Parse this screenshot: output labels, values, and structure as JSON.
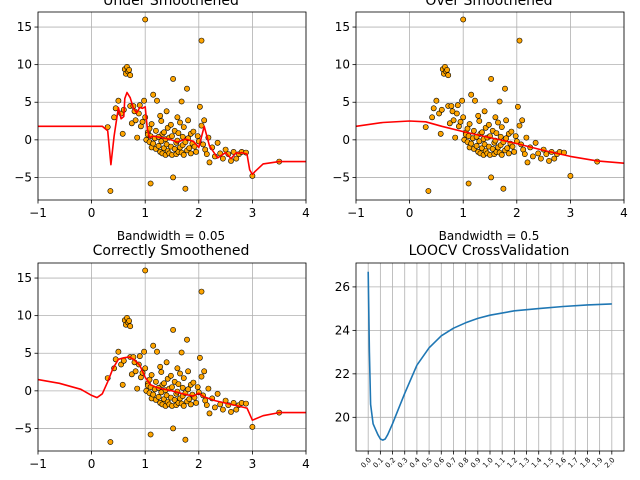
{
  "figure": {
    "background": "#ffffff"
  },
  "chart_data": [
    {
      "type": "scatter",
      "title": "Under Smoothened",
      "xlabel": "Bandwidth = 0.05",
      "ylabel": "",
      "xlim": [
        -1,
        4
      ],
      "ylim": [
        -8,
        17
      ],
      "xticks": [
        -1,
        0,
        1,
        2,
        3,
        4
      ],
      "yticks": [
        -5,
        0,
        5,
        10,
        15
      ],
      "grid": true,
      "colors": {
        "points": "#ffa500",
        "point_edge": "#000000",
        "curve": "#ff0000"
      },
      "points_ref": "shared_points",
      "curve": {
        "x": [
          -1,
          0.2,
          0.3,
          0.33,
          0.36,
          0.42,
          0.5,
          0.55,
          0.6,
          0.62,
          0.66,
          0.72,
          0.78,
          0.84,
          0.9,
          0.95,
          1.0,
          1.04,
          1.08,
          1.15,
          1.3,
          1.45,
          1.6,
          1.75,
          1.9,
          2.0,
          2.1,
          2.2,
          2.35,
          2.5,
          2.6,
          2.7,
          2.75,
          2.8,
          2.9,
          2.95,
          3.0,
          3.05,
          3.2,
          3.5,
          4.0
        ],
        "y": [
          1.8,
          1.8,
          1.2,
          -1.0,
          -3.3,
          0.5,
          4.3,
          2.8,
          3.1,
          5.5,
          6.3,
          5.6,
          4.2,
          3.6,
          4.3,
          4.2,
          4.4,
          1.5,
          0.3,
          0.5,
          0.3,
          0.1,
          -0.3,
          0.1,
          -0.2,
          -1.0,
          1.8,
          -0.8,
          -2.4,
          -1.7,
          -2.5,
          -1.7,
          -1.8,
          -1.7,
          -1.9,
          -4.0,
          -4.6,
          -4.2,
          -3.2,
          -2.9,
          -2.9
        ]
      }
    },
    {
      "type": "scatter",
      "title": "Over Smoothened",
      "xlabel": "Bandwidth = 0.5",
      "ylabel": "",
      "xlim": [
        -1,
        4
      ],
      "ylim": [
        -8,
        17
      ],
      "xticks": [
        -1,
        0,
        1,
        2,
        3,
        4
      ],
      "yticks": [
        -5,
        0,
        5,
        10,
        15
      ],
      "grid": true,
      "colors": {
        "points": "#ffa500",
        "point_edge": "#000000",
        "curve": "#ff0000"
      },
      "points_ref": "shared_points",
      "curve": {
        "x": [
          -1,
          -0.5,
          0,
          0.3,
          0.6,
          1.0,
          1.5,
          2.0,
          2.5,
          3.0,
          3.5,
          4.0
        ],
        "y": [
          1.8,
          2.3,
          2.5,
          2.4,
          1.8,
          1.1,
          0.3,
          -0.5,
          -1.4,
          -2.2,
          -2.8,
          -3.1
        ]
      }
    },
    {
      "type": "scatter",
      "title": "Correctly Smoothened",
      "xlabel": "",
      "ylabel": "",
      "xlim": [
        -1,
        4
      ],
      "ylim": [
        -8,
        17
      ],
      "xticks": [
        -1,
        0,
        1,
        2,
        3,
        4
      ],
      "yticks": [
        -5,
        0,
        5,
        10,
        15
      ],
      "grid": true,
      "colors": {
        "points": "#ffa500",
        "point_edge": "#000000",
        "curve": "#ff0000"
      },
      "points_ref": "shared_points",
      "curve": {
        "x": [
          -1,
          -0.6,
          -0.2,
          0.0,
          0.1,
          0.2,
          0.3,
          0.4,
          0.5,
          0.6,
          0.7,
          0.8,
          0.9,
          1.0,
          1.1,
          1.2,
          1.3,
          1.5,
          1.7,
          1.9,
          2.0,
          2.1,
          2.3,
          2.6,
          2.9,
          3.0,
          3.2,
          3.5,
          4.0
        ],
        "y": [
          1.5,
          1.0,
          0.2,
          -0.6,
          -0.9,
          -0.4,
          1.2,
          3.0,
          4.2,
          4.4,
          4.5,
          4.1,
          3.4,
          1.8,
          0.8,
          0.5,
          0.3,
          0.0,
          -0.4,
          -0.7,
          -0.3,
          -0.8,
          -1.3,
          -1.8,
          -2.3,
          -3.9,
          -3.3,
          -2.9,
          -2.9
        ]
      }
    },
    {
      "type": "line",
      "title": "LOOCV CrossValidation",
      "xlabel": "",
      "ylabel": "",
      "xlim": [
        -0.1,
        2.1
      ],
      "ylim": [
        18.45,
        27.1
      ],
      "xticks": [
        0.0,
        0.1,
        0.2,
        0.3,
        0.4,
        0.5,
        0.6,
        0.7,
        0.8,
        0.9,
        1.0,
        1.1,
        1.2,
        1.3,
        1.4,
        1.5,
        1.6,
        1.7,
        1.8,
        1.9,
        2.0
      ],
      "xticklabels": [
        "0.0",
        "0.1",
        "0.2",
        "0.3",
        "0.4",
        "0.5",
        "0.6",
        "0.7",
        "0.8",
        "0.9",
        "1.0",
        "1.1",
        "1.2",
        "1.3",
        "1.4",
        "1.5",
        "1.6",
        "1.7",
        "1.8",
        "1.9",
        "2.0"
      ],
      "yticks": [
        20,
        22,
        24,
        26
      ],
      "grid": true,
      "colors": {
        "line": "#1f77b4"
      },
      "series": [
        {
          "x": [
            0.0,
            0.01,
            0.02,
            0.04,
            0.06,
            0.08,
            0.1,
            0.12,
            0.14,
            0.16,
            0.2,
            0.25,
            0.3,
            0.4,
            0.5,
            0.6,
            0.7,
            0.8,
            0.9,
            1.0,
            1.2,
            1.4,
            1.6,
            1.8,
            2.0
          ],
          "values": [
            26.7,
            23.0,
            20.6,
            19.7,
            19.45,
            19.2,
            19.0,
            18.95,
            19.0,
            19.2,
            19.7,
            20.4,
            21.1,
            22.4,
            23.2,
            23.75,
            24.1,
            24.35,
            24.55,
            24.7,
            24.9,
            25.0,
            25.1,
            25.17,
            25.22
          ]
        }
      ]
    }
  ],
  "shared_points": [
    [
      0.3,
      1.7
    ],
    [
      0.35,
      -6.8
    ],
    [
      0.42,
      3.0
    ],
    [
      0.45,
      4.2
    ],
    [
      0.5,
      5.2
    ],
    [
      0.55,
      3.5
    ],
    [
      0.58,
      0.8
    ],
    [
      0.6,
      4.0
    ],
    [
      0.62,
      9.4
    ],
    [
      0.64,
      8.8
    ],
    [
      0.66,
      9.7
    ],
    [
      0.68,
      9.1
    ],
    [
      0.7,
      9.3
    ],
    [
      0.72,
      8.6
    ],
    [
      0.72,
      4.5
    ],
    [
      0.75,
      2.2
    ],
    [
      0.78,
      4.5
    ],
    [
      0.8,
      3.8
    ],
    [
      0.82,
      2.6
    ],
    [
      0.85,
      0.3
    ],
    [
      0.88,
      3.5
    ],
    [
      0.9,
      4.6
    ],
    [
      0.92,
      1.8
    ],
    [
      0.95,
      2.4
    ],
    [
      0.98,
      5.2
    ],
    [
      1.0,
      16.0
    ],
    [
      1.0,
      3.0
    ],
    [
      1.02,
      0.0
    ],
    [
      1.05,
      1.0
    ],
    [
      1.05,
      0.7
    ],
    [
      1.08,
      -0.3
    ],
    [
      1.08,
      1.5
    ],
    [
      1.1,
      -5.8
    ],
    [
      1.1,
      0.5
    ],
    [
      1.12,
      -1.0
    ],
    [
      1.12,
      2.1
    ],
    [
      1.15,
      -0.5
    ],
    [
      1.15,
      6.0
    ],
    [
      1.18,
      0.2
    ],
    [
      1.2,
      -1.2
    ],
    [
      1.2,
      1.2
    ],
    [
      1.22,
      5.2
    ],
    [
      1.25,
      0.4
    ],
    [
      1.25,
      -0.8
    ],
    [
      1.28,
      3.2
    ],
    [
      1.28,
      -1.6
    ],
    [
      1.3,
      2.5
    ],
    [
      1.3,
      -0.2
    ],
    [
      1.32,
      -1.8
    ],
    [
      1.32,
      0.8
    ],
    [
      1.35,
      1.0
    ],
    [
      1.35,
      -1.1
    ],
    [
      1.38,
      -2.0
    ],
    [
      1.38,
      0.1
    ],
    [
      1.4,
      3.8
    ],
    [
      1.4,
      -0.6
    ],
    [
      1.42,
      1.6
    ],
    [
      1.42,
      -1.5
    ],
    [
      1.45,
      0.3
    ],
    [
      1.45,
      -1.8
    ],
    [
      1.48,
      -0.9
    ],
    [
      1.48,
      2.0
    ],
    [
      1.5,
      -2.0
    ],
    [
      1.5,
      0.5
    ],
    [
      1.52,
      8.1
    ],
    [
      1.52,
      -5.0
    ],
    [
      1.55,
      -1.2
    ],
    [
      1.55,
      1.2
    ],
    [
      1.58,
      -0.4
    ],
    [
      1.58,
      -1.9
    ],
    [
      1.6,
      3.0
    ],
    [
      1.6,
      -0.1
    ],
    [
      1.62,
      -1.6
    ],
    [
      1.62,
      0.9
    ],
    [
      1.65,
      2.3
    ],
    [
      1.65,
      -1.0
    ],
    [
      1.68,
      5.1
    ],
    [
      1.68,
      -1.7
    ],
    [
      1.7,
      0.4
    ],
    [
      1.7,
      -0.7
    ],
    [
      1.72,
      -2.0
    ],
    [
      1.72,
      1.7
    ],
    [
      1.75,
      -6.5
    ],
    [
      1.75,
      -0.3
    ],
    [
      1.78,
      6.8
    ],
    [
      1.78,
      -1.4
    ],
    [
      1.8,
      0.2
    ],
    [
      1.8,
      2.6
    ],
    [
      1.82,
      -1.1
    ],
    [
      1.85,
      0.8
    ],
    [
      1.85,
      -1.8
    ],
    [
      1.88,
      -0.5
    ],
    [
      1.9,
      1.1
    ],
    [
      1.92,
      -0.9
    ],
    [
      1.95,
      -1.6
    ],
    [
      1.98,
      0.5
    ],
    [
      2.0,
      -0.2
    ],
    [
      2.02,
      4.4
    ],
    [
      2.05,
      1.9
    ],
    [
      2.05,
      13.2
    ],
    [
      2.08,
      -0.6
    ],
    [
      2.1,
      2.6
    ],
    [
      2.12,
      -1.3
    ],
    [
      2.15,
      -1.9
    ],
    [
      2.18,
      0.3
    ],
    [
      2.2,
      -3.0
    ],
    [
      2.25,
      -1.0
    ],
    [
      2.3,
      -2.2
    ],
    [
      2.35,
      -0.4
    ],
    [
      2.4,
      -1.8
    ],
    [
      2.45,
      -2.5
    ],
    [
      2.5,
      -1.3
    ],
    [
      2.55,
      -1.9
    ],
    [
      2.6,
      -2.8
    ],
    [
      2.65,
      -1.6
    ],
    [
      2.7,
      -2.5
    ],
    [
      2.75,
      -1.9
    ],
    [
      2.8,
      -1.6
    ],
    [
      2.88,
      -1.7
    ],
    [
      3.0,
      -4.8
    ],
    [
      3.5,
      -2.9
    ]
  ]
}
